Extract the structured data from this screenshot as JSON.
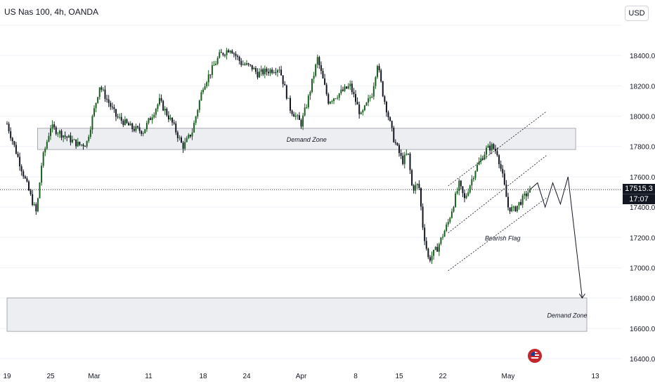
{
  "header": {
    "title": "US Nas 100, 4h, OANDA",
    "currency": "USD"
  },
  "price_tag": {
    "price": "17515.3",
    "countdown": "17:07"
  },
  "colors": {
    "up": "#1b5e20",
    "down": "#131722",
    "zone_fill": "#eceef2",
    "zone_stroke": "#9598a1",
    "grid": "#f0f3fa",
    "axis_text": "#131722"
  },
  "icons": {
    "flag": "us-flag-icon"
  },
  "chart_data": {
    "type": "candlestick",
    "symbol": "US Nas 100",
    "interval": "4h",
    "ylim": [
      16400,
      18600
    ],
    "yticks": [
      16400,
      16600,
      16800,
      17000,
      17200,
      17400,
      17600,
      17800,
      18000,
      18200,
      18400,
      18600
    ],
    "ytick_labels": [
      "16400.0",
      "16600.0",
      "16800.0",
      "17000.0",
      "17200.0",
      "17400.0",
      "17600.0",
      "17800.0",
      "18000.0",
      "18200.0",
      "18400.0",
      ""
    ],
    "x_tick_labels": [
      "19",
      "25",
      "Mar",
      "11",
      "18",
      "24",
      "Apr",
      "8",
      "15",
      "22",
      "May",
      "13"
    ],
    "current_price": 17515.3,
    "path": [
      [
        0.0,
        17950
      ],
      [
        1.4,
        17640
      ],
      [
        2.4,
        17420
      ],
      [
        2.7,
        17360
      ],
      [
        3.2,
        17700
      ],
      [
        4.0,
        17930
      ],
      [
        5.5,
        17860
      ],
      [
        6.6,
        17810
      ],
      [
        7.3,
        17820
      ],
      [
        8.5,
        18200
      ],
      [
        10.0,
        18000
      ],
      [
        11.5,
        17920
      ],
      [
        12.5,
        17900
      ],
      [
        14.0,
        18100
      ],
      [
        15.2,
        17950
      ],
      [
        16.0,
        17820
      ],
      [
        16.2,
        17800
      ],
      [
        17.0,
        17900
      ],
      [
        18.0,
        18200
      ],
      [
        19.5,
        18400
      ],
      [
        20.5,
        18450
      ],
      [
        21.5,
        18350
      ],
      [
        22.5,
        18320
      ],
      [
        23.0,
        18280
      ],
      [
        24.0,
        18300
      ],
      [
        25.0,
        18320
      ],
      [
        26.0,
        18050
      ],
      [
        27.0,
        17950
      ],
      [
        27.6,
        18100
      ],
      [
        28.5,
        18380
      ],
      [
        29.5,
        18100
      ],
      [
        31.5,
        18200
      ],
      [
        32.5,
        18000
      ],
      [
        33.5,
        18150
      ],
      [
        34.0,
        18350
      ],
      [
        34.5,
        18150
      ],
      [
        35.5,
        17850
      ],
      [
        36.3,
        17700
      ],
      [
        36.8,
        17760
      ],
      [
        37.2,
        17520
      ],
      [
        37.8,
        17550
      ],
      [
        38.2,
        17250
      ],
      [
        38.7,
        17050
      ],
      [
        39.5,
        17130
      ],
      [
        40.5,
        17300
      ],
      [
        41.5,
        17550
      ],
      [
        42.0,
        17450
      ],
      [
        43.0,
        17650
      ],
      [
        44.0,
        17780
      ],
      [
        44.5,
        17800
      ],
      [
        45.0,
        17760
      ],
      [
        45.5,
        17600
      ],
      [
        46.0,
        17400
      ],
      [
        46.5,
        17380
      ],
      [
        47.3,
        17450
      ],
      [
        48.0,
        17515
      ]
    ],
    "projection": [
      [
        48.0,
        17515
      ],
      [
        48.7,
        17560
      ],
      [
        49.4,
        17400
      ],
      [
        50.1,
        17560
      ],
      [
        50.8,
        17420
      ],
      [
        51.5,
        17600
      ],
      [
        52.8,
        16800
      ]
    ],
    "zones": [
      {
        "label": "Demand Zone",
        "x0": 2.8,
        "x1": 52.2,
        "y0": 17780,
        "y1": 17920
      },
      {
        "label": "Demand Zone",
        "x0": 0.0,
        "x1": 54.3,
        "y0": 16580,
        "y1": 16800
      }
    ],
    "channel": {
      "label": "Bearish Flag",
      "upper": [
        [
          40.5,
          17540
        ],
        [
          49.5,
          18030
        ]
      ],
      "middle": [
        [
          40.5,
          17230
        ],
        [
          49.5,
          17740
        ]
      ],
      "lower": [
        [
          40.5,
          16980
        ],
        [
          49.5,
          17460
        ]
      ]
    },
    "annotations": [
      {
        "text": "Bearish Flag",
        "x": 45.5,
        "y": 17180
      }
    ]
  }
}
